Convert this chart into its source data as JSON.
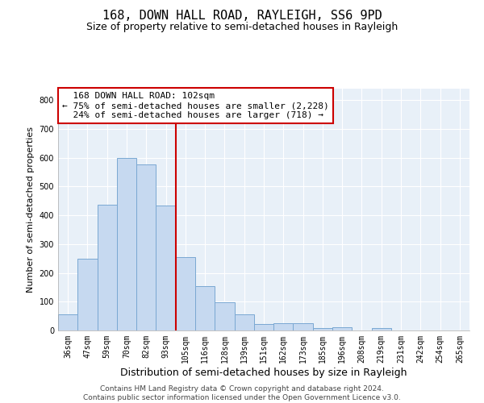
{
  "title1": "168, DOWN HALL ROAD, RAYLEIGH, SS6 9PD",
  "title2": "Size of property relative to semi-detached houses in Rayleigh",
  "xlabel": "Distribution of semi-detached houses by size in Rayleigh",
  "ylabel": "Number of semi-detached properties",
  "footer1": "Contains HM Land Registry data © Crown copyright and database right 2024.",
  "footer2": "Contains public sector information licensed under the Open Government Licence v3.0.",
  "bin_labels": [
    "36sqm",
    "47sqm",
    "59sqm",
    "70sqm",
    "82sqm",
    "93sqm",
    "105sqm",
    "116sqm",
    "128sqm",
    "139sqm",
    "151sqm",
    "162sqm",
    "173sqm",
    "185sqm",
    "196sqm",
    "208sqm",
    "219sqm",
    "231sqm",
    "242sqm",
    "254sqm",
    "265sqm"
  ],
  "bar_values": [
    57,
    248,
    438,
    600,
    576,
    435,
    255,
    155,
    97,
    57,
    22,
    25,
    25,
    9,
    10,
    0,
    8,
    0,
    0,
    0,
    0
  ],
  "bar_color": "#c6d9f0",
  "bar_edge_color": "#7aa8d2",
  "property_label": "168 DOWN HALL ROAD: 102sqm",
  "pct_smaller": 75,
  "count_smaller": 2228,
  "pct_larger": 24,
  "count_larger": 718,
  "red_line_bin_index": 6,
  "annotation_box_color": "#ffffff",
  "annotation_box_edge": "#cc0000",
  "ylim": [
    0,
    840
  ],
  "yticks": [
    0,
    100,
    200,
    300,
    400,
    500,
    600,
    700,
    800
  ],
  "bg_color": "#e8f0f8",
  "grid_color": "#ffffff",
  "title1_fontsize": 11,
  "title2_fontsize": 9,
  "ylabel_fontsize": 8,
  "xlabel_fontsize": 9,
  "tick_fontsize": 7,
  "ann_fontsize": 8,
  "footer_fontsize": 6.5
}
